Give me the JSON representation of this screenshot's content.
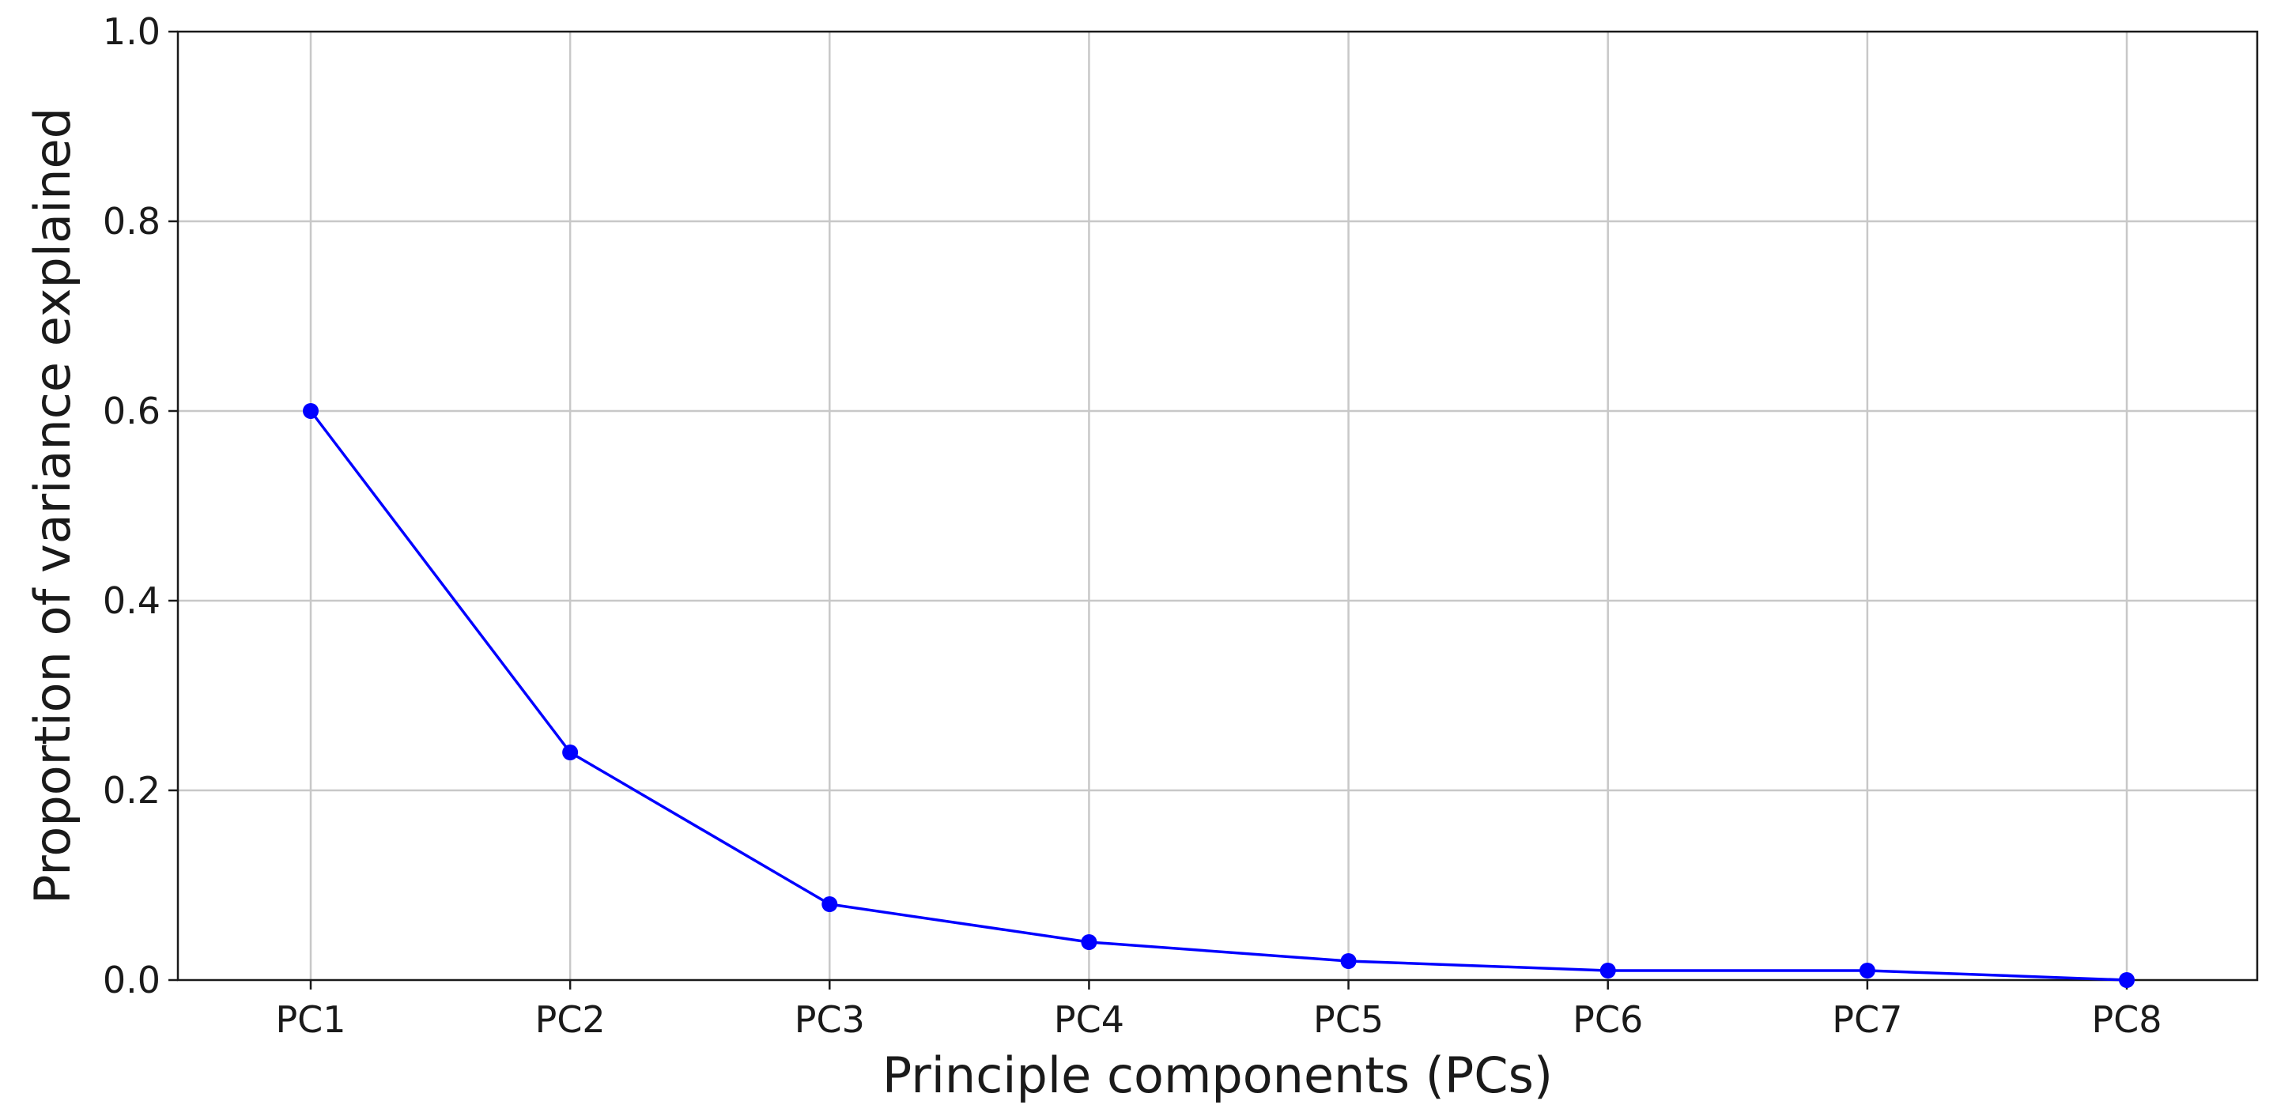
{
  "chart_data": {
    "type": "line",
    "title": "",
    "xlabel": "Principle components (PCs)",
    "ylabel": "Proportion of variance explained",
    "categories": [
      "PC1",
      "PC2",
      "PC3",
      "PC4",
      "PC5",
      "PC6",
      "PC7",
      "PC8"
    ],
    "series": [
      {
        "values": [
          0.6,
          0.24,
          0.08,
          0.04,
          0.02,
          0.01,
          0.01,
          0.0
        ],
        "color": "#0000ff",
        "marker": "circle"
      }
    ],
    "ylim": [
      0,
      1.0
    ],
    "yticks": [
      "0.0",
      "0.2",
      "0.4",
      "0.6",
      "0.8",
      "1.0"
    ],
    "grid": true,
    "legend": "none"
  }
}
